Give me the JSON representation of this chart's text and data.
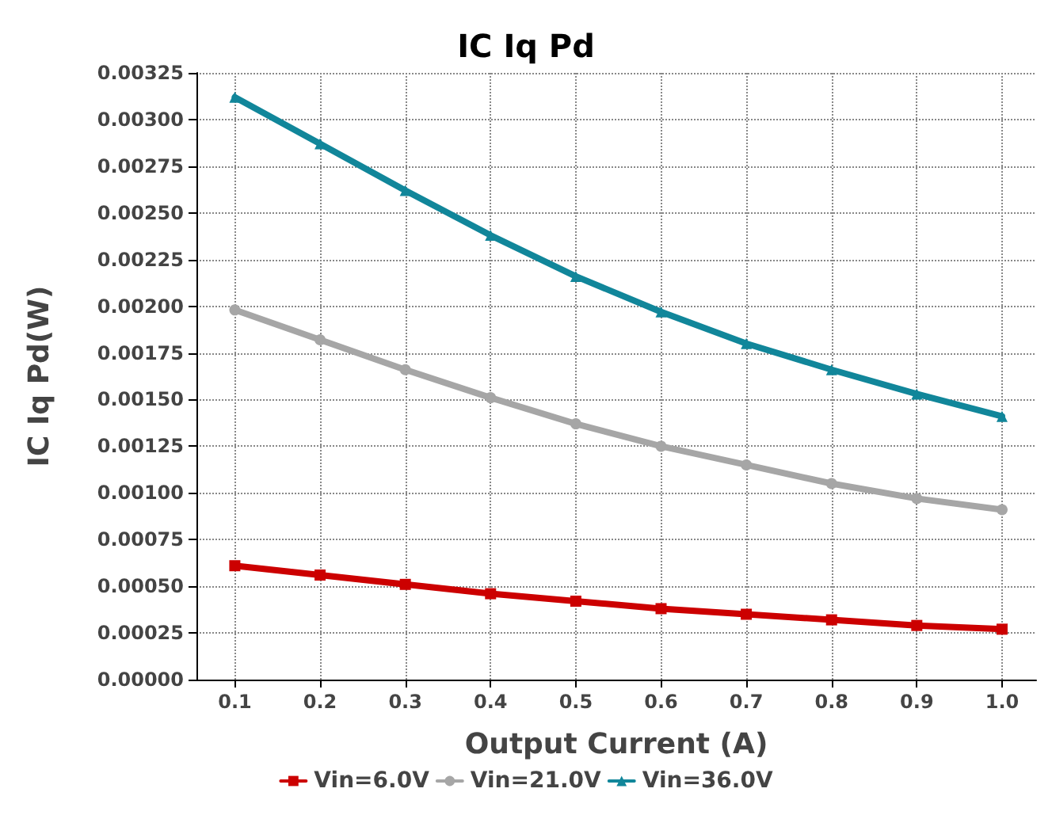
{
  "chart_data": {
    "type": "line",
    "title": "IC Iq Pd",
    "xlabel": "Output Current (A)",
    "ylabel": "IC Iq Pd(W)",
    "x": [
      0.1,
      0.2,
      0.3,
      0.4,
      0.5,
      0.6,
      0.7,
      0.8,
      0.9,
      1.0
    ],
    "series": [
      {
        "name": "Vin=6.0V",
        "color": "#cc0000",
        "marker": "square",
        "values": [
          0.00061,
          0.00056,
          0.00051,
          0.00046,
          0.00042,
          0.00038,
          0.00035,
          0.00032,
          0.00029,
          0.00027
        ]
      },
      {
        "name": "Vin=21.0V",
        "color": "#a6a6a6",
        "marker": "circle",
        "values": [
          0.00198,
          0.00182,
          0.00166,
          0.00151,
          0.00137,
          0.00125,
          0.00115,
          0.00105,
          0.00097,
          0.00091
        ]
      },
      {
        "name": "Vin=36.0V",
        "color": "#11869a",
        "marker": "triangle",
        "values": [
          0.00312,
          0.00287,
          0.00262,
          0.00238,
          0.00216,
          0.00197,
          0.0018,
          0.00166,
          0.00153,
          0.00141
        ]
      }
    ],
    "xlim": [
      0.055,
      1.04
    ],
    "xticks": [
      {
        "value": 0.1,
        "label": "0.1"
      },
      {
        "value": 0.2,
        "label": "0.2"
      },
      {
        "value": 0.3,
        "label": "0.3"
      },
      {
        "value": 0.4,
        "label": "0.4"
      },
      {
        "value": 0.5,
        "label": "0.5"
      },
      {
        "value": 0.6,
        "label": "0.6"
      },
      {
        "value": 0.7,
        "label": "0.7"
      },
      {
        "value": 0.8,
        "label": "0.8"
      },
      {
        "value": 0.9,
        "label": "0.9"
      },
      {
        "value": 1.0,
        "label": "1.0"
      }
    ],
    "ylim": [
      0,
      0.00325
    ],
    "yticks": [
      {
        "value": 0,
        "label": "0.00000"
      },
      {
        "value": 0.00025,
        "label": "0.00025"
      },
      {
        "value": 0.0005,
        "label": "0.00050"
      },
      {
        "value": 0.00075,
        "label": "0.00075"
      },
      {
        "value": 0.001,
        "label": "0.00100"
      },
      {
        "value": 0.00125,
        "label": "0.00125"
      },
      {
        "value": 0.0015,
        "label": "0.00150"
      },
      {
        "value": 0.00175,
        "label": "0.00175"
      },
      {
        "value": 0.002,
        "label": "0.00200"
      },
      {
        "value": 0.00225,
        "label": "0.00225"
      },
      {
        "value": 0.0025,
        "label": "0.00250"
      },
      {
        "value": 0.00275,
        "label": "0.00275"
      },
      {
        "value": 0.003,
        "label": "0.00300"
      },
      {
        "value": 0.00325,
        "label": "0.00325"
      }
    ],
    "grid": true,
    "legend": "bottom",
    "line_style": "solid"
  }
}
